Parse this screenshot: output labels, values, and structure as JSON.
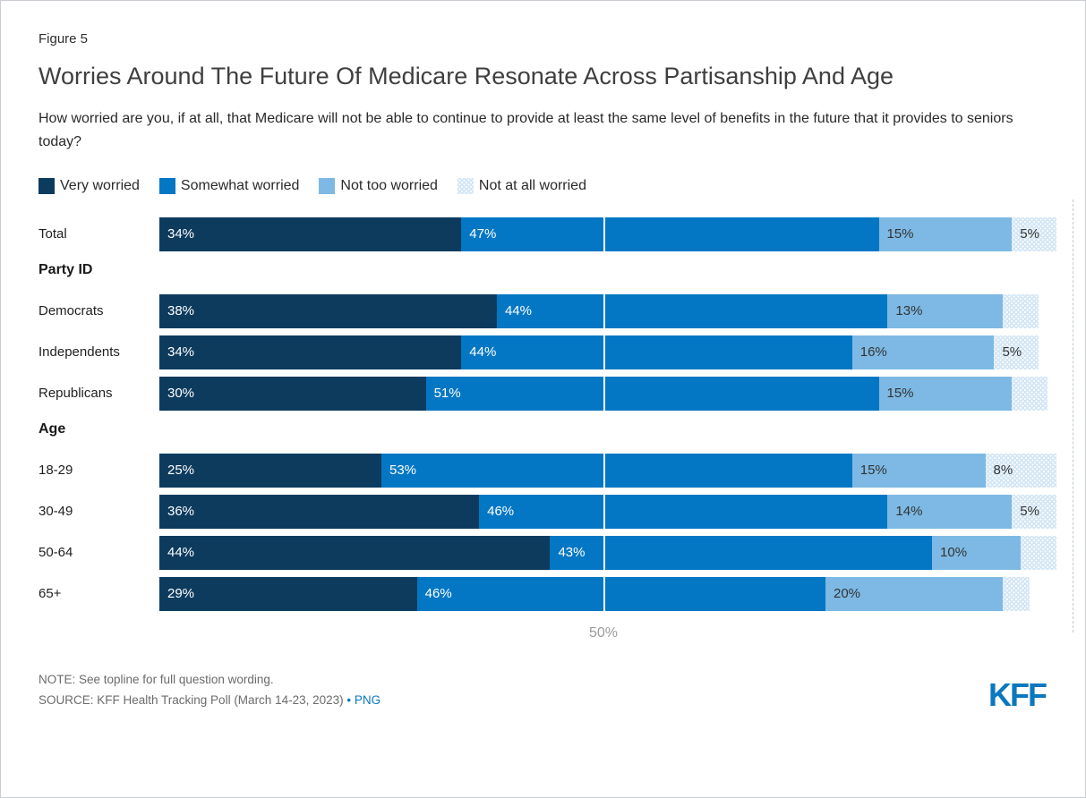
{
  "figure_label": "Figure 5",
  "title": "Worries Around The Future Of Medicare Resonate Across Partisanship And Age",
  "subtitle": "How worried are you, if at all, that Medicare will not be able to continue to provide at least the same level of benefits in the future that it provides to seniors today?",
  "footer": {
    "note": "NOTE: See topline for full question wording.",
    "source_prefix": "SOURCE: KFF Health Tracking Poll (March 14-23, 2023) ",
    "source_separator": "• ",
    "png_link": "PNG",
    "logo_text": "KFF",
    "logo_color": "#0b77bd"
  },
  "chart_data": {
    "type": "bar",
    "orientation": "horizontal",
    "stacked": true,
    "x_axis": {
      "min": 0,
      "max_percent": 100,
      "tick_value": 50,
      "tick_label": "50%",
      "gridline_50_style": "white-overlay",
      "right_edge_style": "dashed-gray"
    },
    "series": [
      {
        "name": "Very worried",
        "color": "#0d3b5e"
      },
      {
        "name": "Somewhat worried",
        "color": "#0477c4"
      },
      {
        "name": "Not too worried",
        "color": "#7db9e4"
      },
      {
        "name": "Not at all worried",
        "color": "#d3e6f5",
        "pattern": "dots"
      }
    ],
    "rows": [
      {
        "kind": "bar",
        "label": "Total",
        "values": [
          34,
          47,
          15,
          5
        ],
        "value_labels": [
          "34%",
          "47%",
          "15%",
          "5%"
        ]
      },
      {
        "kind": "header",
        "label": "Party ID"
      },
      {
        "kind": "bar",
        "label": "Democrats",
        "values": [
          38,
          44,
          13,
          4
        ],
        "value_labels": [
          "38%",
          "44%",
          "13%",
          ""
        ]
      },
      {
        "kind": "bar",
        "label": "Independents",
        "values": [
          34,
          44,
          16,
          5
        ],
        "value_labels": [
          "34%",
          "44%",
          "16%",
          "5%"
        ]
      },
      {
        "kind": "bar",
        "label": "Republicans",
        "values": [
          30,
          51,
          15,
          4
        ],
        "value_labels": [
          "30%",
          "51%",
          "15%",
          ""
        ]
      },
      {
        "kind": "header",
        "label": "Age"
      },
      {
        "kind": "bar",
        "label": "18-29",
        "values": [
          25,
          53,
          15,
          8
        ],
        "value_labels": [
          "25%",
          "53%",
          "15%",
          "8%"
        ]
      },
      {
        "kind": "bar",
        "label": "30-49",
        "values": [
          36,
          46,
          14,
          5
        ],
        "value_labels": [
          "36%",
          "46%",
          "14%",
          "5%"
        ]
      },
      {
        "kind": "bar",
        "label": "50-64",
        "values": [
          44,
          43,
          10,
          4
        ],
        "value_labels": [
          "44%",
          "43%",
          "10%",
          ""
        ]
      },
      {
        "kind": "bar",
        "label": "65+",
        "values": [
          29,
          46,
          20,
          3
        ],
        "value_labels": [
          "29%",
          "46%",
          "20%",
          ""
        ]
      }
    ]
  }
}
